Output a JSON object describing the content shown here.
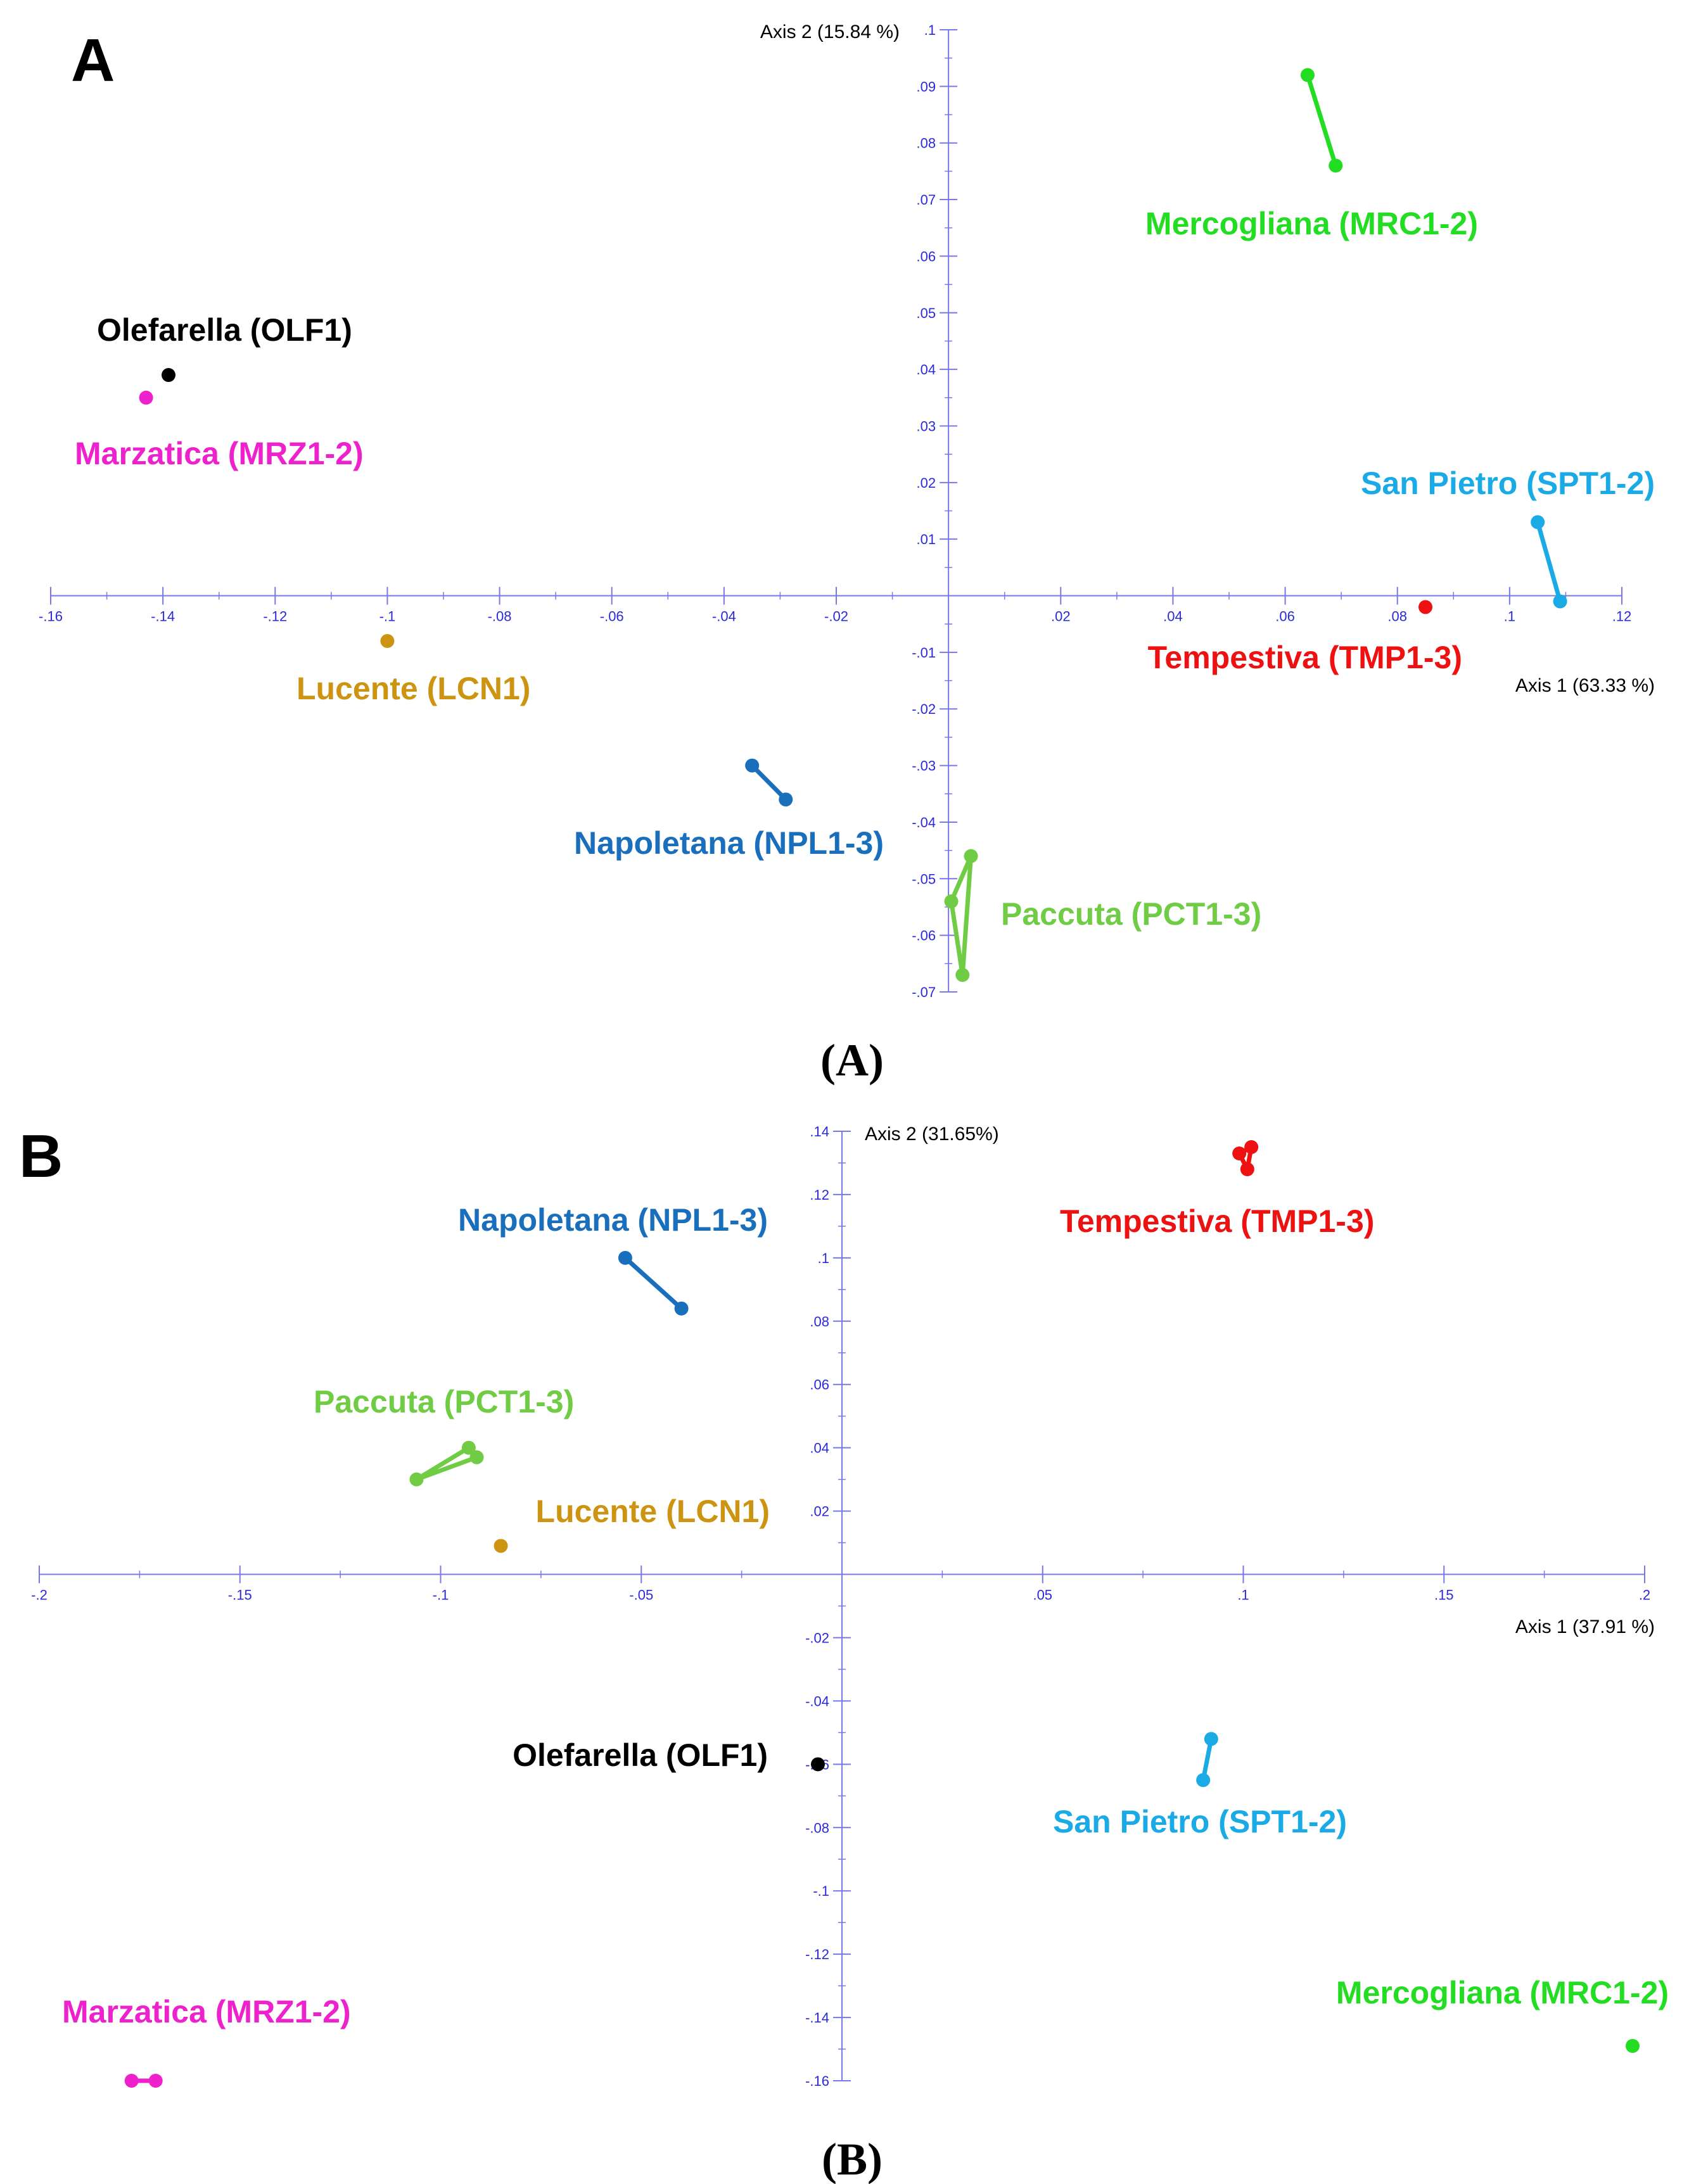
{
  "chart_data": [
    {
      "type": "scatter",
      "panel": "A",
      "caption": "(A)",
      "xlabel": "Axis 1 (63.33 %)",
      "ylabel": "Axis 2 (15.84 %)",
      "xlim": [
        -0.16,
        0.12
      ],
      "ylim": [
        -0.07,
        0.1
      ],
      "x_ticks": [
        -0.16,
        -0.14,
        -0.12,
        -0.1,
        -0.08,
        -0.06,
        -0.04,
        -0.02,
        0.02,
        0.04,
        0.06,
        0.08,
        0.1,
        0.12
      ],
      "x_tick_labels": [
        "-.16",
        "-.14",
        "-.12",
        "-.1",
        "-.08",
        "-.06",
        "-.04",
        "-.02",
        ".02",
        ".04",
        ".06",
        ".08",
        ".1",
        ".12"
      ],
      "y_ticks": [
        0.1,
        0.09,
        0.08,
        0.07,
        0.06,
        0.05,
        0.04,
        0.03,
        0.02,
        0.01,
        -0.01,
        -0.02,
        -0.03,
        -0.04,
        -0.05,
        -0.06,
        -0.07
      ],
      "y_tick_labels": [
        ".1",
        ".09",
        ".08",
        ".07",
        ".06",
        ".05",
        ".04",
        ".03",
        ".02",
        ".01",
        "-.01",
        "-.02",
        "-.03",
        "-.04",
        "-.05",
        "-.06",
        "-.07"
      ],
      "series": [
        {
          "name": "Mercogliana (MRC1-2)",
          "color": "#22dd22",
          "points": [
            [
              0.064,
              0.092
            ],
            [
              0.069,
              0.076
            ]
          ]
        },
        {
          "name": "Olefarella (OLF1)",
          "color": "#000000",
          "points": [
            [
              -0.139,
              0.039
            ]
          ]
        },
        {
          "name": "Marzatica (MRZ1-2)",
          "color": "#ee22cc",
          "points": [
            [
              -0.143,
              0.035
            ]
          ]
        },
        {
          "name": "San Pietro (SPT1-2)",
          "color": "#1aaae6",
          "points": [
            [
              0.105,
              0.013
            ],
            [
              0.109,
              -0.001
            ]
          ]
        },
        {
          "name": "Tempestiva (TMP1-3)",
          "color": "#ee1111",
          "points": [
            [
              0.085,
              -0.002
            ]
          ]
        },
        {
          "name": "Lucente (LCN1)",
          "color": "#cc9411",
          "points": [
            [
              -0.1,
              -0.008
            ]
          ]
        },
        {
          "name": "Napoletana (NPL1-3)",
          "color": "#1a6fbd",
          "points": [
            [
              -0.035,
              -0.03
            ],
            [
              -0.029,
              -0.036
            ]
          ]
        },
        {
          "name": "Paccuta (PCT1-3)",
          "color": "#6fcc44",
          "points": [
            [
              0.004,
              -0.046
            ],
            [
              0.0005,
              -0.054
            ],
            [
              0.0025,
              -0.067
            ],
            [
              0.004,
              -0.046
            ]
          ]
        }
      ]
    },
    {
      "type": "scatter",
      "panel": "B",
      "caption": "(B)",
      "xlabel": "Axis 1 (37.91 %)",
      "ylabel": "Axis 2 (31.65%)",
      "xlim": [
        -0.2,
        0.2
      ],
      "ylim": [
        -0.16,
        0.14
      ],
      "x_ticks": [
        -0.2,
        -0.15,
        -0.1,
        -0.05,
        0.05,
        0.1,
        0.15,
        0.2
      ],
      "x_tick_labels": [
        "-.2",
        "-.15",
        "-.1",
        "-.05",
        ".05",
        ".1",
        ".15",
        ".2"
      ],
      "y_ticks": [
        0.14,
        0.12,
        0.1,
        0.08,
        0.06,
        0.04,
        0.02,
        -0.02,
        -0.04,
        -0.06,
        -0.08,
        -0.1,
        -0.12,
        -0.14,
        -0.16
      ],
      "y_tick_labels": [
        ".14",
        ".12",
        ".1",
        ".08",
        ".06",
        ".04",
        ".02",
        "-.02",
        "-.04",
        "-.06",
        "-.08",
        "-.1",
        "-.12",
        "-.14",
        "-.16"
      ],
      "series": [
        {
          "name": "Napoletana (NPL1-3)",
          "color": "#1a6fbd",
          "points": [
            [
              -0.054,
              0.1
            ],
            [
              -0.04,
              0.084
            ]
          ]
        },
        {
          "name": "Tempestiva (TMP1-3)",
          "color": "#ee1111",
          "points": [
            [
              0.099,
              0.133
            ],
            [
              0.102,
              0.135
            ],
            [
              0.101,
              0.128
            ],
            [
              0.099,
              0.133
            ]
          ]
        },
        {
          "name": "Paccuta (PCT1-3)",
          "color": "#6fcc44",
          "points": [
            [
              -0.106,
              0.03
            ],
            [
              -0.093,
              0.04
            ],
            [
              -0.091,
              0.037
            ],
            [
              -0.106,
              0.03
            ]
          ]
        },
        {
          "name": "Lucente (LCN1)",
          "color": "#cc9411",
          "points": [
            [
              -0.085,
              0.009
            ]
          ]
        },
        {
          "name": "Olefarella (OLF1)",
          "color": "#000000",
          "points": [
            [
              -0.006,
              -0.06
            ]
          ]
        },
        {
          "name": "San Pietro (SPT1-2)",
          "color": "#1aaae6",
          "points": [
            [
              0.092,
              -0.052
            ],
            [
              0.09,
              -0.065
            ]
          ]
        },
        {
          "name": "Marzatica (MRZ1-2)",
          "color": "#ee22cc",
          "points": [
            [
              -0.177,
              -0.16
            ],
            [
              -0.171,
              -0.16
            ]
          ]
        },
        {
          "name": "Mercogliana (MRC1-2)",
          "color": "#22dd22",
          "points": [
            [
              0.197,
              -0.149
            ]
          ]
        }
      ]
    }
  ]
}
